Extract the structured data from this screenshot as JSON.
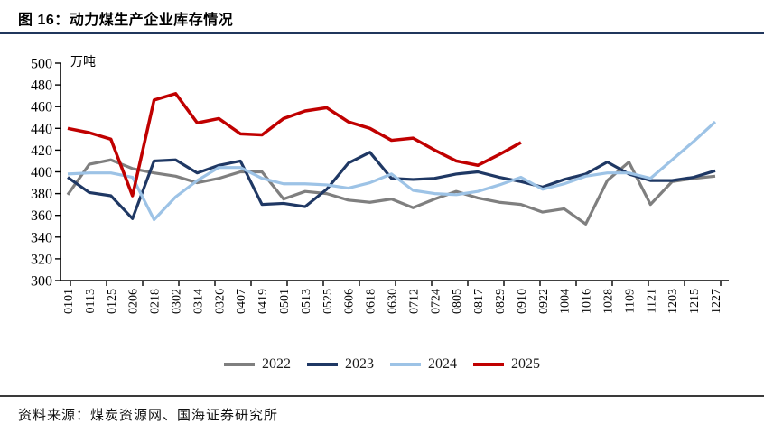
{
  "header": {
    "title": "图 16：动力煤生产企业库存情况"
  },
  "footer": {
    "source": "资料来源：煤炭资源网、国海证券研究所"
  },
  "colors": {
    "axis": "#000000",
    "title_rule": "#20365c",
    "footer_rule": "#3a3a3a"
  },
  "chart_data": {
    "type": "line",
    "title": "动力煤生产企业库存情况",
    "unit_label": "万吨",
    "ylabel": "",
    "xlabel": "",
    "ylim": [
      300,
      500
    ],
    "ytick_step": 20,
    "grid": false,
    "legend_position": "bottom",
    "categories": [
      "0101",
      "0113",
      "0125",
      "0206",
      "0218",
      "0302",
      "0314",
      "0326",
      "0407",
      "0419",
      "0501",
      "0513",
      "0525",
      "0606",
      "0618",
      "0630",
      "0712",
      "0724",
      "0805",
      "0817",
      "0829",
      "0910",
      "0922",
      "1004",
      "1016",
      "1028",
      "1109",
      "1121",
      "1203",
      "1215",
      "1227"
    ],
    "series": [
      {
        "name": "2022",
        "color": "#7F7F7F",
        "values": [
          379,
          407,
          411,
          403,
          399,
          396,
          390,
          394,
          400,
          400,
          375,
          382,
          380,
          374,
          372,
          375,
          367,
          375,
          382,
          376,
          372,
          370,
          363,
          366,
          352,
          392,
          409,
          370,
          391,
          394,
          396
        ]
      },
      {
        "name": "2023",
        "color": "#1F3864",
        "values": [
          395,
          381,
          378,
          357,
          410,
          411,
          399,
          406,
          410,
          370,
          371,
          368,
          384,
          408,
          418,
          394,
          393,
          394,
          398,
          400,
          395,
          391,
          386,
          393,
          398,
          409,
          398,
          392,
          392,
          395,
          401
        ]
      },
      {
        "name": "2024",
        "color": "#9DC3E6",
        "values": [
          398,
          399,
          399,
          395,
          356,
          377,
          392,
          404,
          404,
          394,
          389,
          389,
          388,
          385,
          390,
          398,
          383,
          380,
          379,
          382,
          388,
          395,
          384,
          389,
          396,
          399,
          399,
          394,
          411,
          428,
          446
        ]
      },
      {
        "name": "2025",
        "color": "#C00000",
        "values": [
          440,
          436,
          430,
          378,
          466,
          472,
          445,
          449,
          435,
          434,
          449,
          456,
          459,
          446,
          440,
          429,
          431,
          420,
          410,
          406,
          416,
          427,
          null,
          null,
          null,
          null,
          null,
          null,
          null,
          null,
          null
        ]
      }
    ]
  }
}
